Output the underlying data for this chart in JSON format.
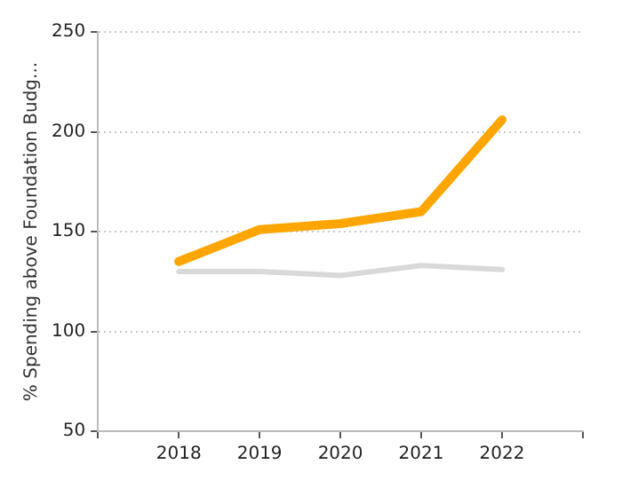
{
  "chart_data": {
    "type": "line",
    "ylabel": "% Spending above Foundation Budg...",
    "x": [
      2018,
      2019,
      2020,
      2021,
      2022
    ],
    "series": [
      {
        "color": "#ffa500",
        "values": [
          135,
          151,
          154,
          160,
          206
        ]
      },
      {
        "color": "#d9d9d9",
        "values": [
          130,
          130,
          128,
          133,
          131
        ]
      }
    ],
    "xlim": [
      2017,
      2023
    ],
    "xticks": [
      {
        "value": 2017,
        "label": null
      },
      2018,
      2019,
      2020,
      2021,
      2022,
      {
        "value": 2023,
        "label": null
      }
    ],
    "ylim": [
      50,
      250
    ],
    "yticks": [
      50,
      100,
      150,
      200,
      250
    ],
    "grid": "y",
    "legend": false,
    "marker": "none",
    "line_style": "solid"
  }
}
